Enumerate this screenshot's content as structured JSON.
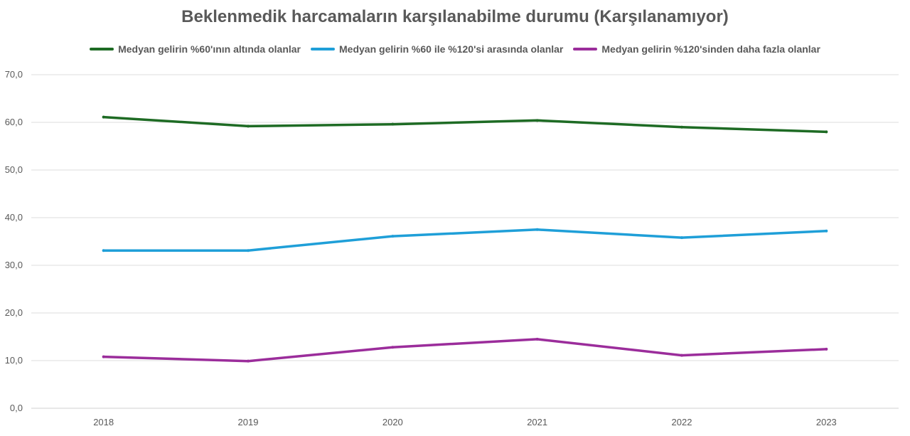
{
  "chart_data": {
    "type": "line",
    "title": "Beklenmedik harcamaların karşılanabilme durumu (Karşılanamıyor)",
    "xlabel": "",
    "ylabel": "",
    "categories": [
      "2018",
      "2019",
      "2020",
      "2021",
      "2022",
      "2023"
    ],
    "ylim": [
      0,
      70
    ],
    "yticks": [
      "0,0",
      "10,0",
      "20,0",
      "30,0",
      "40,0",
      "50,0",
      "60,0",
      "70,0"
    ],
    "grid": true,
    "legend_position": "top",
    "series": [
      {
        "name": "Medyan gelirin %60'ının altında olanlar",
        "color": "#1e6b24",
        "values": [
          61.1,
          59.2,
          59.6,
          60.4,
          59.0,
          58.0
        ]
      },
      {
        "name": "Medyan gelirin %60 ile %120'si arasında olanlar",
        "color": "#1f9fd8",
        "values": [
          33.1,
          33.1,
          36.1,
          37.5,
          35.8,
          37.2
        ]
      },
      {
        "name": "Medyan gelirin  %120'sinden daha fazla olanlar",
        "color": "#9b2d9b",
        "values": [
          10.8,
          9.9,
          12.8,
          14.5,
          11.1,
          12.4
        ]
      }
    ]
  }
}
